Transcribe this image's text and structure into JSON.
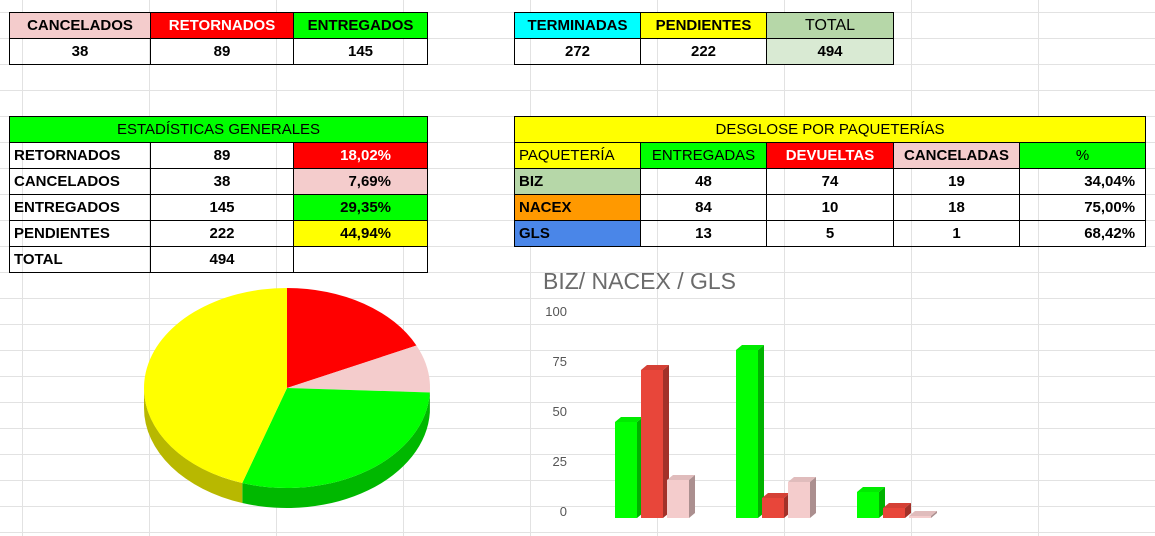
{
  "summary_left": {
    "headers": [
      "CANCELADOS",
      "RETORNADOS",
      "ENTREGADOS"
    ],
    "values": [
      "38",
      "89",
      "145"
    ]
  },
  "summary_right": {
    "headers": [
      "TERMINADAS",
      "PENDIENTES",
      "TOTAL"
    ],
    "values": [
      "272",
      "222",
      "494"
    ]
  },
  "estadisticas": {
    "title": "ESTADÍSTICAS GENERALES",
    "rows": [
      {
        "label": "RETORNADOS",
        "value": "89",
        "pct": "18,02%"
      },
      {
        "label": "CANCELADOS",
        "value": "38",
        "pct": "7,69%"
      },
      {
        "label": "ENTREGADOS",
        "value": "145",
        "pct": "29,35%"
      },
      {
        "label": "PENDIENTES",
        "value": "222",
        "pct": "44,94%"
      },
      {
        "label": "TOTAL",
        "value": "494",
        "pct": ""
      }
    ]
  },
  "desglose": {
    "title": "DESGLOSE POR PAQUETERÍAS",
    "headers": [
      "PAQUETERÍA",
      "ENTREGADAS",
      "DEVUELTAS",
      "CANCELADAS",
      "%"
    ],
    "rows": [
      {
        "name": "BIZ",
        "entregadas": "48",
        "devueltas": "74",
        "canceladas": "19",
        "pct": "34,04%"
      },
      {
        "name": "NACEX",
        "entregadas": "84",
        "devueltas": "10",
        "canceladas": "18",
        "pct": "75,00%"
      },
      {
        "name": "GLS",
        "entregadas": "13",
        "devueltas": "5",
        "canceladas": "1",
        "pct": "68,42%"
      }
    ]
  },
  "colors": {
    "cancelados": "#f4cccc",
    "retornados": "#ff0000",
    "entregados": "#00ff00",
    "pendientes": "#ffff00",
    "terminadas": "#00ffff",
    "total": "#b6d7a8",
    "total_value": "#d9ead3",
    "biz": "#b6d7a8",
    "nacex": "#ff9900",
    "gls": "#4a86e8",
    "devueltas_bar": "#e8463a"
  },
  "chart_data": [
    {
      "type": "pie",
      "labels": [
        "RETORNADOS",
        "CANCELADOS",
        "ENTREGADOS",
        "PENDIENTES"
      ],
      "values": [
        89,
        38,
        145,
        222
      ],
      "colors": [
        "#ff0000",
        "#f4cccc",
        "#00ff00",
        "#ffff00"
      ],
      "style": "3d"
    },
    {
      "type": "bar",
      "title": "BIZ/ NACEX / GLS",
      "categories": [
        "BIZ",
        "NACEX",
        "GLS"
      ],
      "series": [
        {
          "values": [
            48,
            84,
            13
          ],
          "color": "#00ff00"
        },
        {
          "values": [
            74,
            10,
            5
          ],
          "color": "#e8463a"
        },
        {
          "values": [
            19,
            18,
            1
          ],
          "color": "#f4cccc"
        }
      ],
      "ylim": [
        0,
        100
      ],
      "yticks": [
        "100",
        "75",
        "50",
        "25",
        "0"
      ],
      "style": "3d"
    }
  ]
}
